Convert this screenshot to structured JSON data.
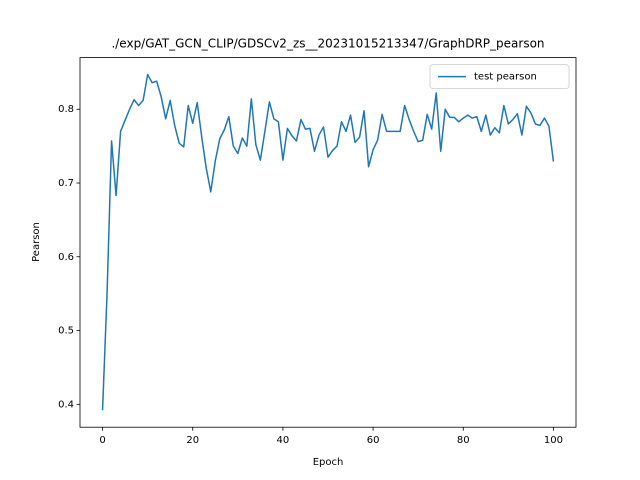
{
  "chart_data": {
    "type": "line",
    "title": "./exp/GAT_GCN_CLIP/GDSCv2_zs__20231015213347/GraphDRP_pearson",
    "x_label": "Epoch",
    "y_label": "Pearson",
    "x": [
      0,
      1,
      2,
      3,
      4,
      5,
      6,
      7,
      8,
      9,
      10,
      11,
      12,
      13,
      14,
      15,
      16,
      17,
      18,
      19,
      20,
      21,
      22,
      23,
      24,
      25,
      26,
      27,
      28,
      29,
      30,
      31,
      32,
      33,
      34,
      35,
      36,
      37,
      38,
      39,
      40,
      41,
      42,
      43,
      44,
      45,
      46,
      47,
      48,
      49,
      50,
      51,
      52,
      53,
      54,
      55,
      56,
      57,
      58,
      59,
      60,
      61,
      62,
      63,
      64,
      65,
      66,
      67,
      68,
      69,
      70,
      71,
      72,
      73,
      74,
      75,
      76,
      77,
      78,
      79,
      80,
      81,
      82,
      83,
      84,
      85,
      86,
      87,
      88,
      89,
      90,
      91,
      92,
      93,
      94,
      95,
      96,
      97,
      98,
      99,
      100
    ],
    "series": [
      {
        "name": "test pearson",
        "color": "#1f77b4",
        "values": [
          0.392,
          0.55,
          0.757,
          0.683,
          0.77,
          0.785,
          0.8,
          0.813,
          0.805,
          0.812,
          0.847,
          0.836,
          0.838,
          0.817,
          0.787,
          0.812,
          0.778,
          0.754,
          0.749,
          0.805,
          0.781,
          0.809,
          0.762,
          0.72,
          0.688,
          0.73,
          0.76,
          0.772,
          0.79,
          0.75,
          0.74,
          0.761,
          0.75,
          0.814,
          0.752,
          0.731,
          0.77,
          0.81,
          0.787,
          0.783,
          0.731,
          0.774,
          0.764,
          0.757,
          0.786,
          0.773,
          0.774,
          0.743,
          0.765,
          0.776,
          0.735,
          0.744,
          0.75,
          0.783,
          0.77,
          0.792,
          0.755,
          0.762,
          0.798,
          0.722,
          0.745,
          0.758,
          0.793,
          0.77,
          0.77,
          0.77,
          0.77,
          0.805,
          0.786,
          0.77,
          0.756,
          0.758,
          0.793,
          0.773,
          0.822,
          0.743,
          0.8,
          0.789,
          0.789,
          0.783,
          0.788,
          0.792,
          0.788,
          0.79,
          0.77,
          0.792,
          0.765,
          0.775,
          0.768,
          0.805,
          0.78,
          0.786,
          0.794,
          0.765,
          0.804,
          0.795,
          0.78,
          0.778,
          0.788,
          0.777,
          0.729
        ]
      }
    ],
    "xlim": [
      -5,
      105
    ],
    "ylim": [
      0.369,
      0.87
    ],
    "xticks": [
      0,
      20,
      40,
      60,
      80,
      100
    ],
    "yticks": [
      0.4,
      0.5,
      0.6,
      0.7,
      0.8
    ],
    "legend": "upper right"
  }
}
